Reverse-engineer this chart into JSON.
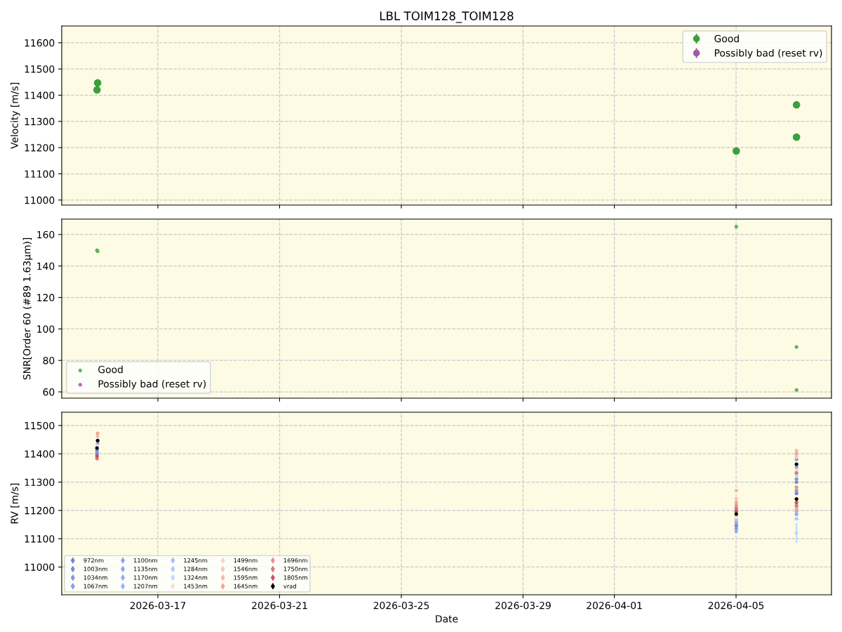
{
  "chart_data": [
    {
      "type": "scatter",
      "title": "LBL TOIM128_TOIM128",
      "ylabel": "Velocity [m/s]",
      "x": [
        "2026-03-15T00:00",
        "2026-03-15T00:30",
        "2026-04-05T00:10",
        "2026-04-06T23:40",
        "2026-04-06T23:40"
      ],
      "series": [
        {
          "name": "Good",
          "color": "#3c9f3c",
          "values": [
            11420,
            11447,
            11187,
            11240,
            11363
          ]
        },
        {
          "name": "Possibly bad (reset rv)",
          "color": "#a35aab",
          "values": [
            null,
            null,
            null,
            null,
            null
          ]
        }
      ],
      "xlim": [
        "2026-03-13T20:10",
        "2026-04-08T03:15"
      ],
      "xticks": [
        "2026-03-17",
        "2026-03-21",
        "2026-03-25",
        "2026-03-29",
        "2026-04-01",
        "2026-04-05"
      ],
      "ylim": [
        10981,
        11664
      ],
      "yticks": [
        11000,
        11100,
        11200,
        11300,
        11400,
        11500,
        11600
      ],
      "tick_labels": "y",
      "grid": true,
      "legend": "top right",
      "marker": "circle"
    },
    {
      "type": "scatter",
      "ylabel": "SNR[Order 60 (#89 1.63μm)]",
      "x": [
        "2026-03-15T00:00",
        "2026-03-15T00:30",
        "2026-04-05T00:10",
        "2026-04-06T23:40",
        "2026-04-06T23:40"
      ],
      "series": [
        {
          "name": "Good",
          "color": "#5fb35f",
          "values": [
            150.0,
            149.3,
            165.0,
            88.5,
            61.2
          ]
        },
        {
          "name": "Possibly bad (reset rv)",
          "color": "#b46ab4",
          "values": [
            null,
            null,
            null,
            null,
            null
          ]
        }
      ],
      "xlim": [
        "2026-03-13T20:10",
        "2026-04-08T03:15"
      ],
      "xticks": [
        "2026-03-17",
        "2026-03-21",
        "2026-03-25",
        "2026-03-29",
        "2026-04-01",
        "2026-04-05"
      ],
      "ylim": [
        56,
        169.8
      ],
      "yticks": [
        60,
        80,
        100,
        120,
        140,
        160
      ],
      "tick_labels": "y",
      "grid": true,
      "legend": "bottom left",
      "marker": "circle"
    },
    {
      "type": "scatter",
      "xlabel": "Date",
      "ylabel": "RV [m/s]",
      "x": [
        "2026-03-15T00:00",
        "2026-03-15T00:30",
        "2026-04-05T00:10",
        "2026-04-06T23:40",
        "2026-04-06T23:40"
      ],
      "series": [
        {
          "name": "972nm",
          "color": "#7682d3",
          "values": [
            null,
            null,
            11146,
            11260,
            null
          ]
        },
        {
          "name": "1003nm",
          "color": "#7b8adb",
          "values": [
            11401,
            null,
            null,
            null,
            11300
          ]
        },
        {
          "name": "1034nm",
          "color": "#8193e2",
          "values": [
            11410,
            null,
            null,
            null,
            11311
          ]
        },
        {
          "name": "1067nm",
          "color": "#879be8",
          "values": [
            null,
            null,
            11136,
            11270,
            null
          ]
        },
        {
          "name": "1100nm",
          "color": "#8ea3ee",
          "values": [
            null,
            11437,
            11156,
            null,
            11380
          ]
        },
        {
          "name": "1135nm",
          "color": "#90a6f0",
          "values": [
            null,
            null,
            null,
            null,
            11352
          ]
        },
        {
          "name": "1170nm",
          "color": "#94abf2",
          "values": [
            null,
            null,
            11126,
            11186,
            null
          ]
        },
        {
          "name": "1207nm",
          "color": "#9bb3f7",
          "values": [
            null,
            null,
            null,
            11196,
            null
          ]
        },
        {
          "name": "1245nm",
          "color": "#a6bffc",
          "values": [
            null,
            null,
            11166,
            null,
            null
          ]
        },
        {
          "name": "1284nm",
          "color": "#afc8fe",
          "values": [
            null,
            null,
            null,
            11170,
            null
          ]
        },
        {
          "name": "1324nm",
          "color": "#c3d7fe",
          "values": [
            null,
            null,
            null,
            11120,
            11321
          ],
          "errors": [
            null,
            null,
            null,
            35,
            null
          ]
        },
        {
          "name": "1453nm",
          "color": "#f4ddd1",
          "values": [
            11428,
            null,
            11176,
            null,
            null
          ]
        },
        {
          "name": "1499nm",
          "color": "#f8d4c4",
          "values": [
            null,
            null,
            null,
            null,
            11342
          ]
        },
        {
          "name": "1546nm",
          "color": "#f9c6b2",
          "values": [
            null,
            null,
            11240,
            null,
            11390
          ]
        },
        {
          "name": "1595nm",
          "color": "#f7b8a3",
          "values": [
            null,
            11462,
            11270,
            null,
            11411
          ]
        },
        {
          "name": "1645nm",
          "color": "#f2a793",
          "values": [
            null,
            11472,
            11228,
            11205,
            11400
          ]
        },
        {
          "name": "1696nm",
          "color": "#e79384",
          "values": [
            null,
            null,
            11217,
            11282,
            null
          ]
        },
        {
          "name": "1750nm",
          "color": "#d97975",
          "values": [
            11383,
            null,
            11207,
            11216,
            11332
          ]
        },
        {
          "name": "1805nm",
          "color": "#ca4f67",
          "values": [
            11392,
            null,
            11197,
            11228,
            null
          ]
        },
        {
          "name": "vrad",
          "color": "#000000",
          "values": [
            11420,
            11447,
            11187,
            11240,
            11363
          ]
        }
      ],
      "xlim": [
        "2026-03-13T20:10",
        "2026-04-08T03:15"
      ],
      "xticks": [
        "2026-03-17",
        "2026-03-21",
        "2026-03-25",
        "2026-03-29",
        "2026-04-01",
        "2026-04-05"
      ],
      "ylim": [
        10902,
        11547
      ],
      "yticks": [
        11000,
        11100,
        11200,
        11300,
        11400,
        11500
      ],
      "grid": true,
      "legend": "bottom left",
      "marker": "circle"
    }
  ]
}
